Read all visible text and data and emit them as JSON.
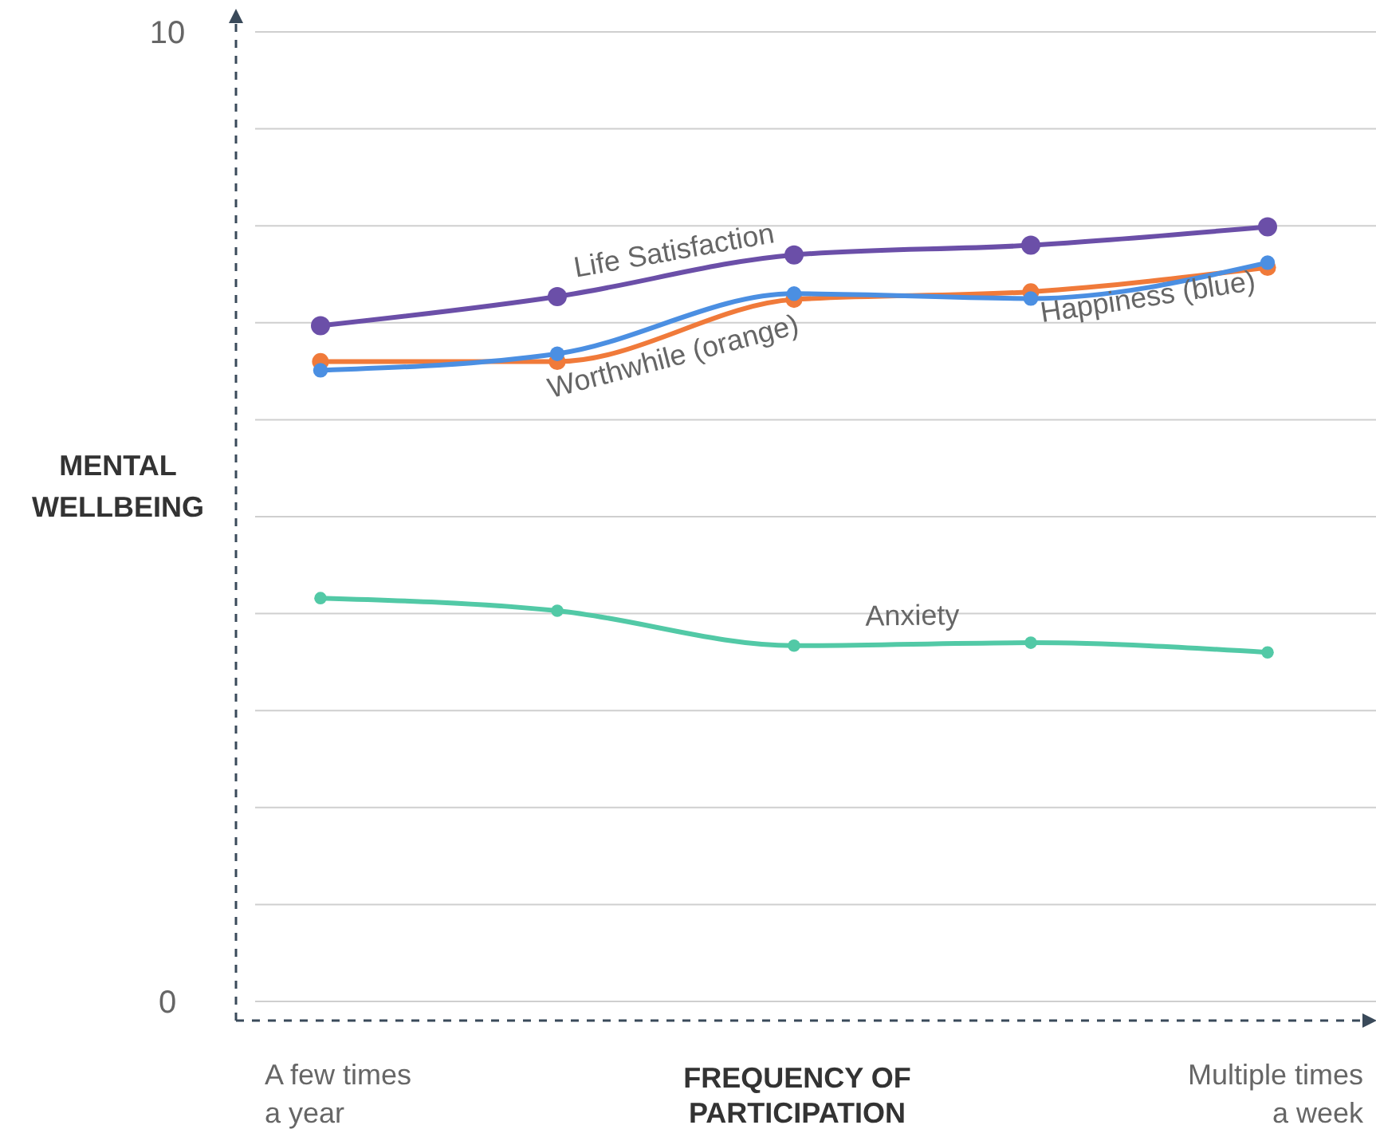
{
  "chart_data": {
    "type": "line",
    "xlabel": "FREQUENCY OF PARTICIPATION",
    "ylabel": "MENTAL WELLBEING",
    "categories": [
      "A few times a year",
      null,
      null,
      null,
      "Multiple times a week"
    ],
    "series": [
      {
        "name": "Life Satisfaction",
        "color": "#6b4fa8",
        "values": [
          6.97,
          7.27,
          7.7,
          7.8,
          7.99
        ]
      },
      {
        "name": "Worthwhile (orange)",
        "color": "#f07a3a",
        "values": [
          6.6,
          6.6,
          7.24,
          7.32,
          7.57
        ]
      },
      {
        "name": "Happiness (blue)",
        "color": "#4b8fe2",
        "values": [
          6.51,
          6.68,
          7.3,
          7.25,
          7.62
        ]
      },
      {
        "name": "Anxiety",
        "color": "#52c9a6",
        "values": [
          4.16,
          4.03,
          3.67,
          3.7,
          3.6
        ]
      }
    ],
    "ylim": [
      0,
      10
    ],
    "yticks": [
      0,
      {
        "value": 1,
        "label": null
      },
      {
        "value": 2,
        "label": null
      },
      {
        "value": 3,
        "label": null
      },
      {
        "value": 4,
        "label": null
      },
      {
        "value": 5,
        "label": null
      },
      {
        "value": 6,
        "label": null
      },
      {
        "value": 7,
        "label": null
      },
      {
        "value": 8,
        "label": null
      },
      {
        "value": 9,
        "label": null
      },
      10
    ],
    "grid": "y",
    "marker": "circle",
    "line_style": "solid"
  }
}
